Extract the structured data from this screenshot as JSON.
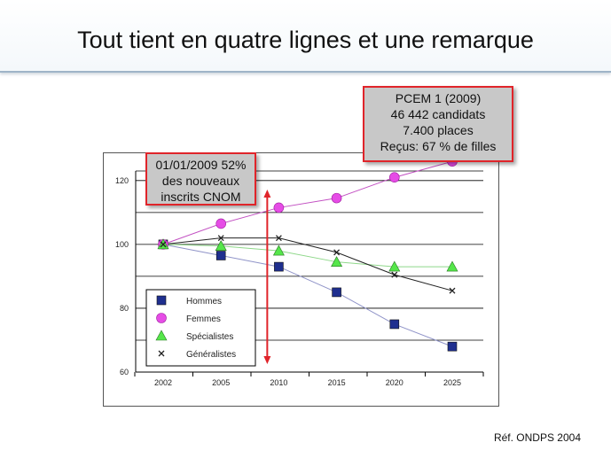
{
  "slide": {
    "title": "Tout tient en quatre lignes et une remarque",
    "reference": "Réf. ONDPS 2004"
  },
  "callouts": {
    "top": [
      "PCEM 1 (2009)",
      "46 442 candidats",
      "7.400 places",
      "Reçus: 67 % de filles"
    ],
    "left": [
      "01/01/2009 52%",
      "des nouveaux",
      "inscrits CNOM"
    ]
  },
  "colors": {
    "hommes": "#1f2f8f",
    "hommes_line": "#8f93c8",
    "femmes": "#e64ce6",
    "femmes_line": "#c24fc2",
    "specialistes": "#55e64a",
    "specialistes_line": "#8fd88a",
    "generalistes": "#222222",
    "callout_border": "#e0242a",
    "marker_2009": "#e0242a"
  },
  "chart_data": {
    "type": "line",
    "x": [
      "2002",
      "2005",
      "2010",
      "2015",
      "2020",
      "2025"
    ],
    "yticks": [
      60,
      80,
      100,
      120
    ],
    "ylim": [
      60,
      123
    ],
    "grid": true,
    "legend_position": "bottom-left",
    "marker_year": 2009,
    "series": [
      {
        "name": "Hommes",
        "marker": "square",
        "values": [
          100,
          96.5,
          93,
          85,
          75,
          68
        ]
      },
      {
        "name": "Femmes",
        "marker": "circle",
        "values": [
          100,
          106.5,
          111.5,
          114.5,
          121,
          126
        ]
      },
      {
        "name": "Spécialistes",
        "marker": "triangle",
        "values": [
          100,
          99.5,
          98,
          94.5,
          93,
          93
        ]
      },
      {
        "name": "Généralistes",
        "marker": "x",
        "values": [
          100,
          102,
          102,
          97.5,
          90.5,
          85.5
        ]
      }
    ]
  }
}
